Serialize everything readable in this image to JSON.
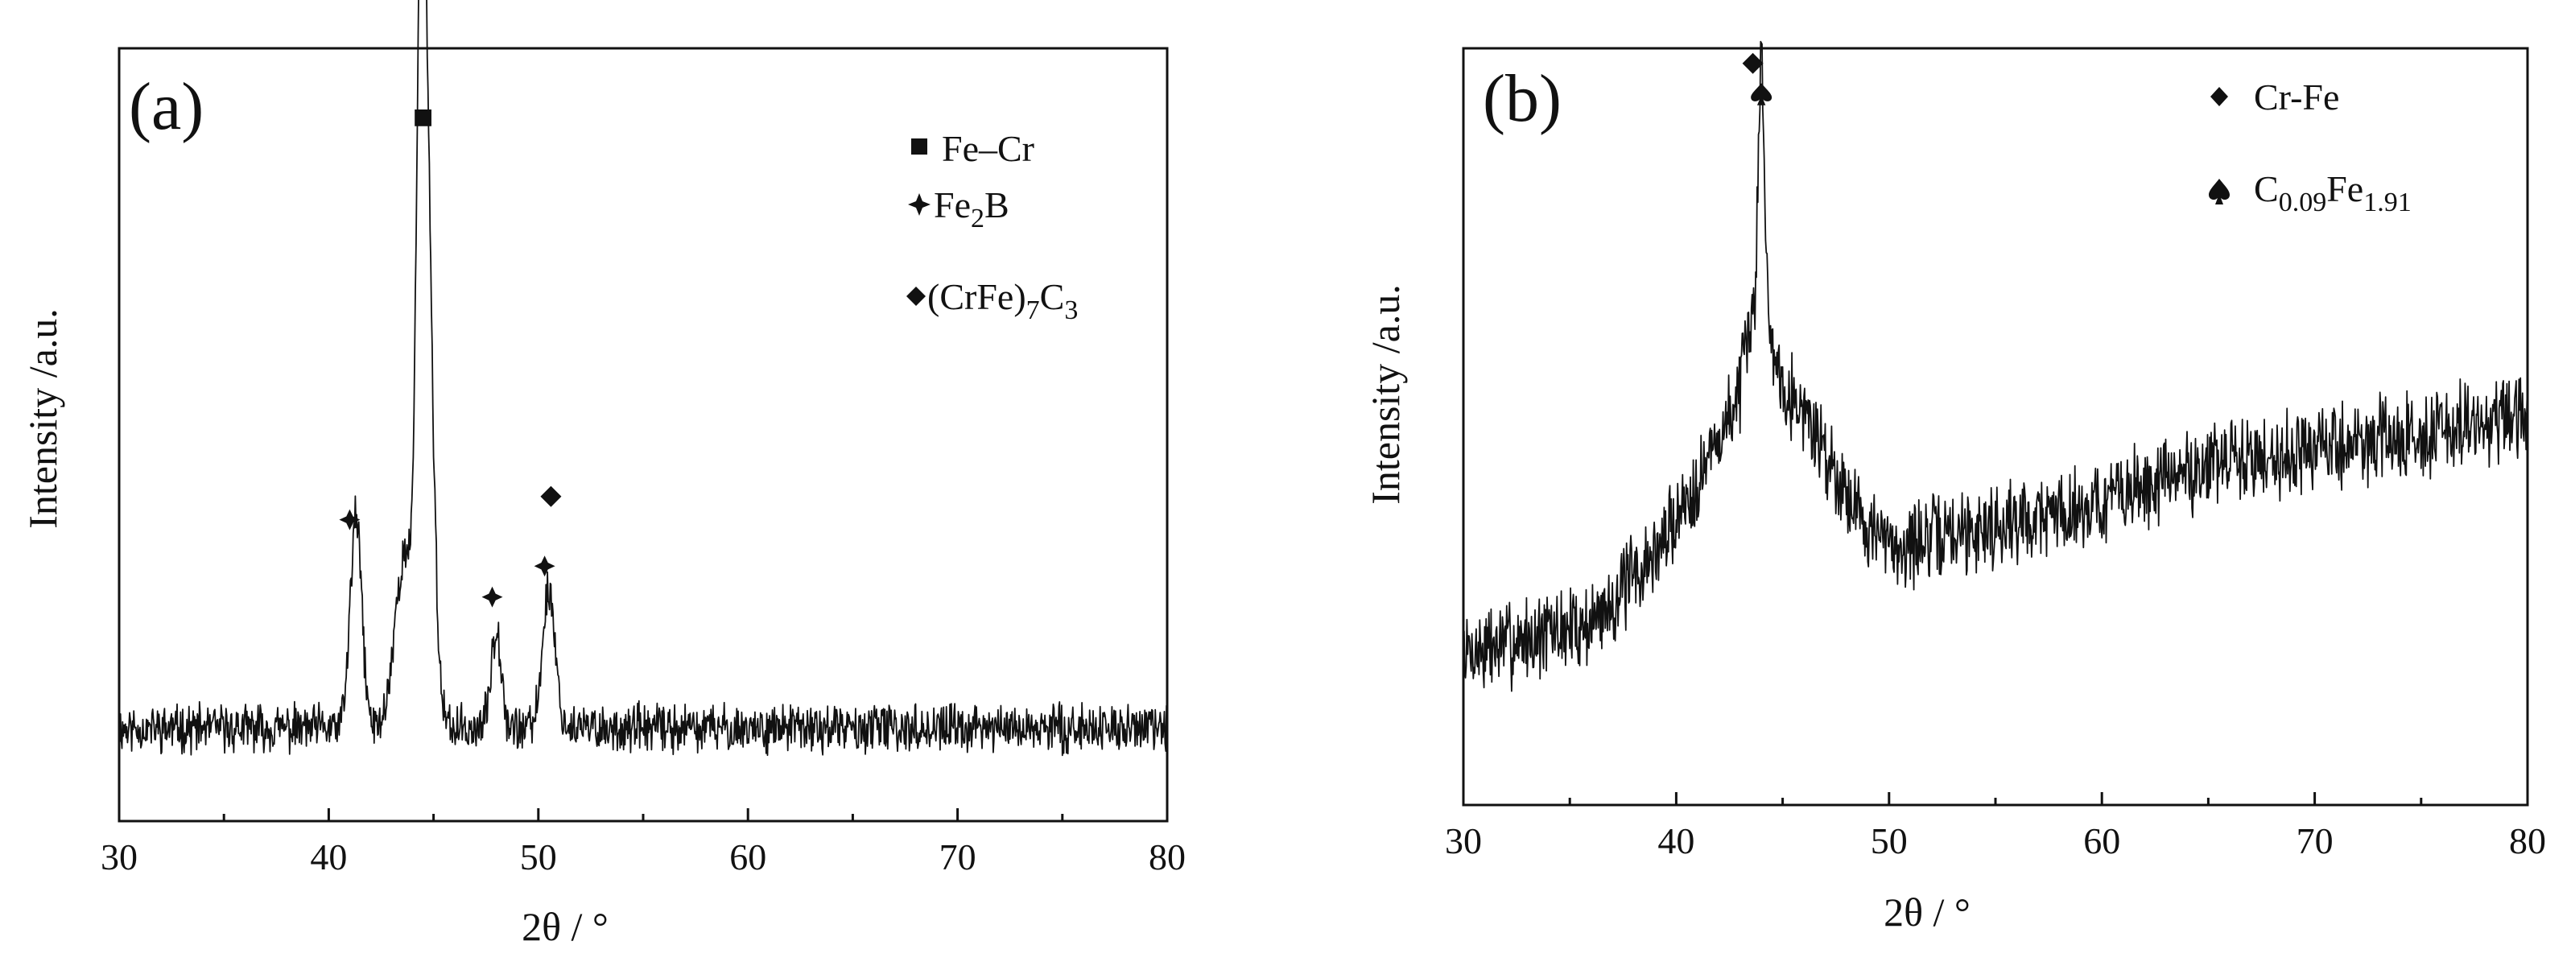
{
  "chart_data": [
    {
      "panel": "(a)",
      "type": "line",
      "xlabel": "2θ / °",
      "ylabel": "Intensity /a.u.",
      "xlim": [
        30,
        80
      ],
      "xticks": [
        30,
        40,
        50,
        60,
        70,
        80
      ],
      "ylim": [
        0,
        100
      ],
      "yticks_shown": false,
      "baseline": 12,
      "noise": 2.4,
      "seed": 11,
      "line_color": "#111111",
      "peaks": [
        {
          "x": 41.3,
          "h": 27,
          "w": 0.28
        },
        {
          "x": 43.6,
          "h": 22,
          "w": 0.45
        },
        {
          "x": 44.4,
          "h": 72,
          "w": 0.22
        },
        {
          "x": 44.7,
          "h": 60,
          "w": 0.3
        },
        {
          "x": 48.0,
          "h": 13,
          "w": 0.25
        },
        {
          "x": 50.5,
          "h": 18,
          "w": 0.3
        }
      ],
      "markers": [
        {
          "symbol": "square",
          "x": 44.5,
          "y": 91
        },
        {
          "symbol": "star",
          "x": 41.0,
          "y": 39
        },
        {
          "symbol": "star",
          "x": 47.8,
          "y": 29
        },
        {
          "symbol": "star",
          "x": 50.3,
          "y": 33
        },
        {
          "symbol": "diamond",
          "x": 50.6,
          "y": 42
        }
      ],
      "legend": [
        {
          "symbol": "square",
          "parts": [
            {
              "t": "Fe–Cr"
            }
          ]
        },
        {
          "symbol": "star",
          "parts": [
            {
              "t": "Fe"
            },
            {
              "t": "2",
              "sub": true
            },
            {
              "t": "B"
            }
          ]
        },
        {
          "symbol": "diamond",
          "parts": [
            {
              "t": "(CrFe)"
            },
            {
              "t": "7",
              "sub": true
            },
            {
              "t": "C"
            },
            {
              "t": "3",
              "sub": true
            }
          ]
        }
      ],
      "legend_position": "top-right"
    },
    {
      "panel": "(b)",
      "type": "line",
      "xlabel": "2θ / °",
      "ylabel": "Intensity /a.u.",
      "xlim": [
        30,
        80
      ],
      "xticks": [
        30,
        40,
        50,
        60,
        70,
        80
      ],
      "ylim": [
        0,
        100
      ],
      "yticks_shown": false,
      "noise": 4.5,
      "seed": 7,
      "line_color": "#111111",
      "background_points": [
        [
          30,
          20
        ],
        [
          36,
          24
        ],
        [
          39,
          33
        ],
        [
          41,
          43
        ],
        [
          43,
          54
        ],
        [
          44.5,
          58
        ],
        [
          46,
          52
        ],
        [
          47.5,
          44
        ],
        [
          49,
          37
        ],
        [
          50,
          34
        ],
        [
          55,
          37
        ],
        [
          60,
          40
        ],
        [
          65,
          45
        ],
        [
          70,
          47
        ],
        [
          75,
          49
        ],
        [
          80,
          51
        ]
      ],
      "peaks": [
        {
          "x": 44.0,
          "h": 33,
          "w": 0.14
        },
        {
          "x": 43.85,
          "h": 10,
          "w": 0.45
        }
      ],
      "markers": [
        {
          "symbol": "diamond",
          "x": 43.6,
          "y": 98
        },
        {
          "symbol": "spade",
          "x": 44.0,
          "y": 94
        }
      ],
      "legend": [
        {
          "symbol": "diamond",
          "parts": [
            {
              "t": "Cr-Fe"
            }
          ]
        },
        {
          "symbol": "spade",
          "parts": [
            {
              "t": "C"
            },
            {
              "t": "0.09",
              "sub": true
            },
            {
              "t": "Fe"
            },
            {
              "t": "1.91",
              "sub": true
            }
          ]
        }
      ],
      "legend_position": "top-right"
    }
  ]
}
